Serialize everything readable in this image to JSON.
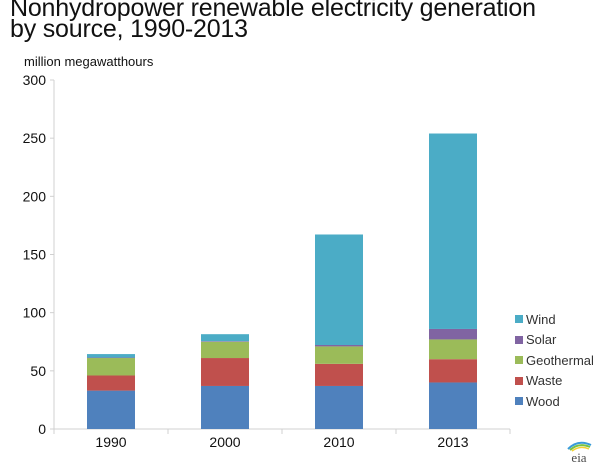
{
  "chart_data": {
    "type": "bar",
    "stacked": true,
    "title": "Nonhydropower renewable electricity generation by source, 1990-2013",
    "title_lines": [
      "Nonhydropower renewable electricity generation",
      "by source, 1990-2013"
    ],
    "xlabel": "",
    "ylabel": "million megawatthours",
    "ylim": [
      0,
      300
    ],
    "yticks": [
      0,
      50,
      100,
      150,
      200,
      250,
      300
    ],
    "grid": false,
    "categories": [
      "1990",
      "2000",
      "2010",
      "2013"
    ],
    "series": [
      {
        "name": "Wood",
        "color": "#4F81BD",
        "values": [
          33,
          37,
          37,
          40
        ]
      },
      {
        "name": "Waste",
        "color": "#C0504D",
        "values": [
          13,
          24,
          19,
          20
        ]
      },
      {
        "name": "Geothermal",
        "color": "#9BBB59",
        "values": [
          15,
          14,
          15,
          17
        ]
      },
      {
        "name": "Solar",
        "color": "#8064A2",
        "values": [
          0.4,
          0.5,
          1.2,
          9
        ]
      },
      {
        "name": "Wind",
        "color": "#4BACC6",
        "values": [
          3,
          6,
          95,
          168
        ]
      }
    ],
    "legend": {
      "placement": "right",
      "order": [
        "Wind",
        "Solar",
        "Geothermal",
        "Waste",
        "Wood"
      ]
    },
    "source_logo": "eia"
  }
}
